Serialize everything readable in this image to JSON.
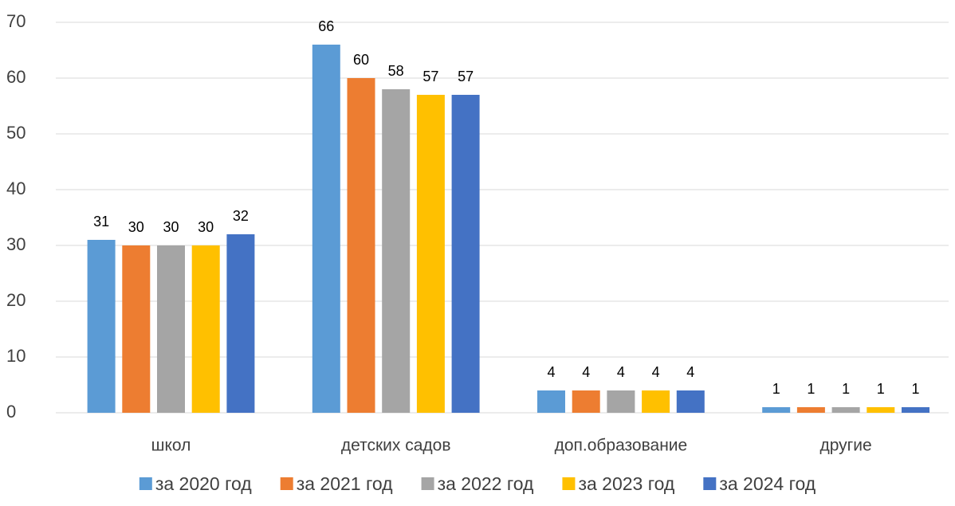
{
  "chart_data": {
    "type": "bar",
    "categories": [
      "школ",
      "детских садов",
      "доп.образование",
      "другие"
    ],
    "series": [
      {
        "name": "за 2020 год",
        "color": "#5b9bd5",
        "values": [
          31,
          66,
          4,
          1
        ]
      },
      {
        "name": "за 2021 год",
        "color": "#ed7d31",
        "values": [
          30,
          60,
          4,
          1
        ]
      },
      {
        "name": "за 2022 год",
        "color": "#a5a5a5",
        "values": [
          30,
          58,
          4,
          1
        ]
      },
      {
        "name": "за 2023 год",
        "color": "#ffc000",
        "values": [
          30,
          57,
          4,
          1
        ]
      },
      {
        "name": "за 2024 год",
        "color": "#4472c4",
        "values": [
          32,
          57,
          4,
          1
        ]
      }
    ],
    "ylim": [
      0,
      70
    ],
    "yticks": [
      0,
      10,
      20,
      30,
      40,
      50,
      60,
      70
    ],
    "grid": true,
    "legend": "bottom"
  }
}
